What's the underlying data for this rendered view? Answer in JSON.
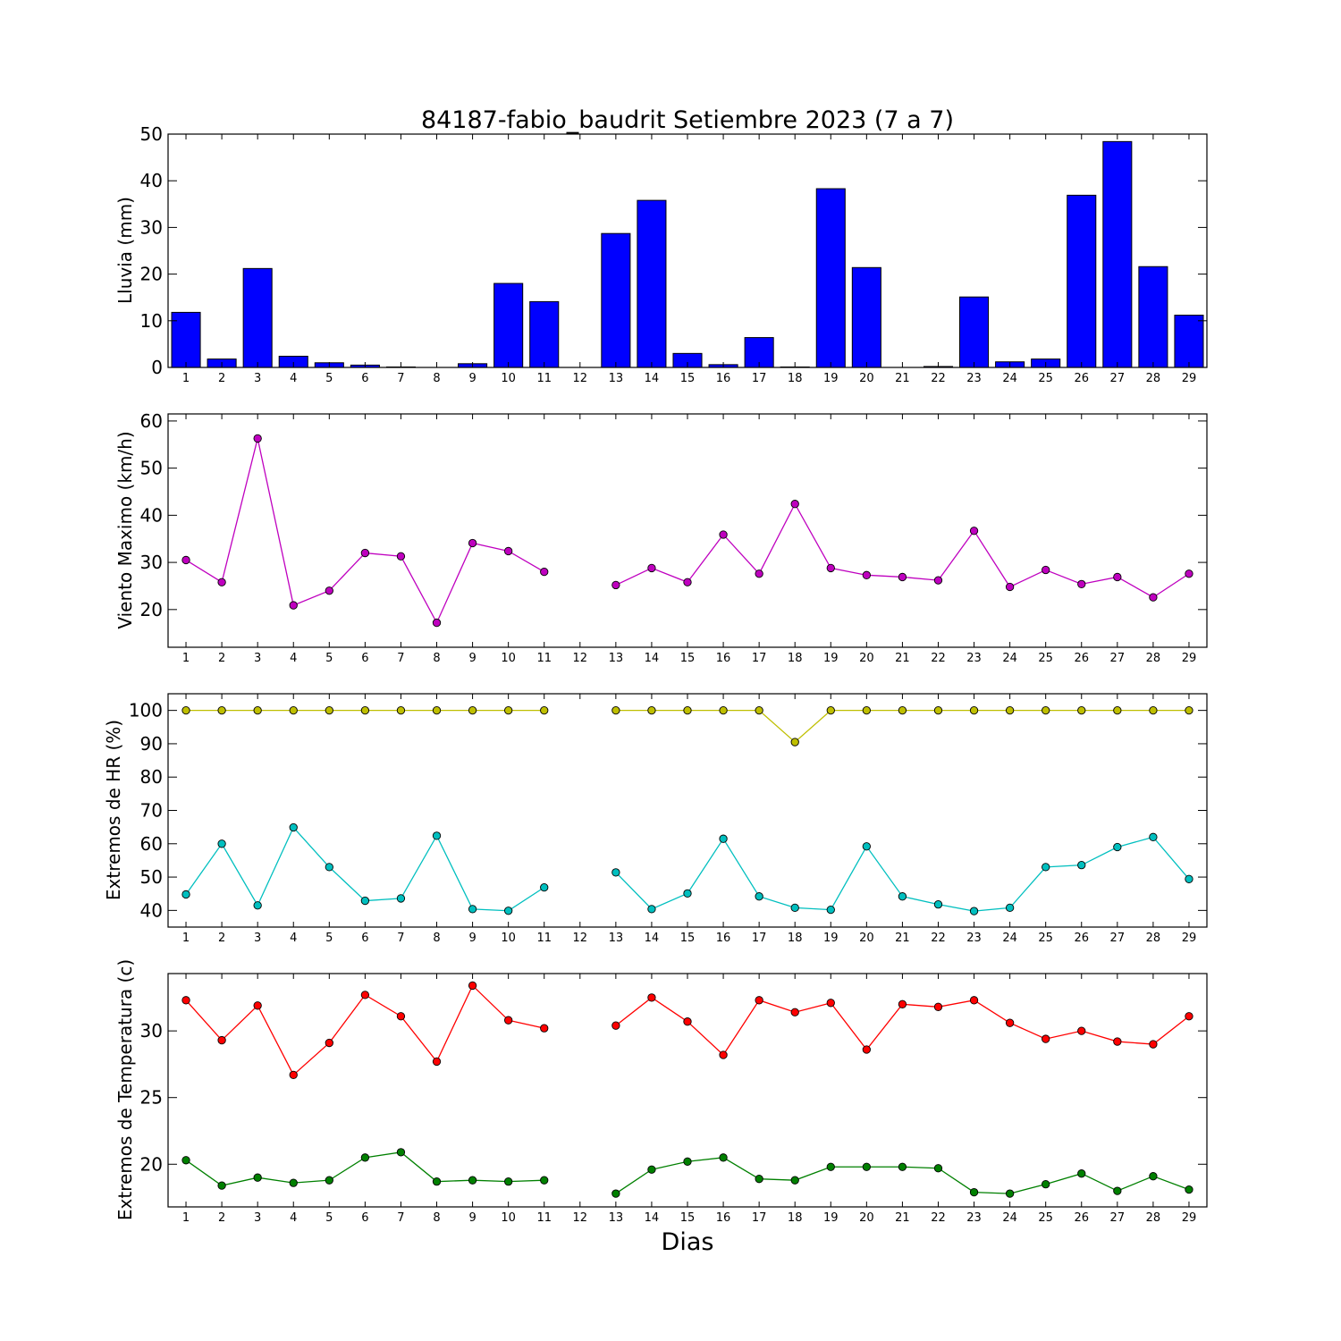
{
  "figure": {
    "title": "84187-fabio_baudrit Setiembre 2023  (7 a 7)",
    "xlabel": "Dias"
  },
  "chart_data": [
    {
      "type": "bar",
      "ylabel": "Lluvia (mm)",
      "ylim": [
        0,
        50
      ],
      "yticks": [
        0,
        10,
        20,
        30,
        40,
        50
      ],
      "xlim": [
        0.5,
        29.5
      ],
      "x": [
        1,
        2,
        3,
        4,
        5,
        6,
        7,
        8,
        9,
        10,
        11,
        12,
        13,
        14,
        15,
        16,
        17,
        18,
        19,
        20,
        21,
        22,
        23,
        24,
        25,
        26,
        27,
        28,
        29
      ],
      "values": [
        11.8,
        1.8,
        21.2,
        2.4,
        1.0,
        0.5,
        0.1,
        0,
        0.8,
        18.0,
        14.1,
        0,
        28.7,
        35.8,
        3.0,
        0.6,
        6.4,
        0.1,
        38.3,
        21.4,
        0,
        0.2,
        15.1,
        1.2,
        1.8,
        36.9,
        48.4,
        21.6,
        11.2
      ],
      "color": "#0000ff",
      "grid": false
    },
    {
      "type": "line",
      "ylabel": "Viento Maximo (km/h)",
      "ylim": [
        12,
        61.5
      ],
      "yticks": [
        20,
        30,
        40,
        50,
        60
      ],
      "xlim": [
        0.5,
        29.5
      ],
      "x": [
        1,
        2,
        3,
        4,
        5,
        6,
        7,
        8,
        9,
        10,
        11,
        12,
        13,
        14,
        15,
        16,
        17,
        18,
        19,
        20,
        21,
        22,
        23,
        24,
        25,
        26,
        27,
        28,
        29
      ],
      "series": [
        {
          "color": "#bf00bf",
          "values": [
            30.5,
            25.8,
            56.3,
            20.9,
            24.0,
            32.0,
            31.3,
            17.2,
            34.1,
            32.4,
            28.0,
            null,
            25.2,
            28.8,
            25.8,
            35.9,
            27.6,
            42.4,
            28.8,
            27.3,
            26.9,
            26.2,
            36.7,
            24.8,
            28.4,
            25.4,
            26.9,
            22.6,
            27.6
          ]
        }
      ],
      "grid": false
    },
    {
      "type": "line",
      "ylabel": "Extremos de HR (%)",
      "ylim": [
        35,
        105
      ],
      "yticks": [
        40,
        50,
        60,
        70,
        80,
        90,
        100
      ],
      "xlim": [
        0.5,
        29.5
      ],
      "x": [
        1,
        2,
        3,
        4,
        5,
        6,
        7,
        8,
        9,
        10,
        11,
        12,
        13,
        14,
        15,
        16,
        17,
        18,
        19,
        20,
        21,
        22,
        23,
        24,
        25,
        26,
        27,
        28,
        29
      ],
      "series": [
        {
          "color": "#bfbf00",
          "values": [
            100,
            100,
            100,
            100,
            100,
            100,
            100,
            100,
            100,
            100,
            100,
            null,
            100,
            100,
            100,
            100,
            100,
            90.5,
            100,
            100,
            100,
            100,
            100,
            100,
            100,
            100,
            100,
            100,
            100
          ]
        },
        {
          "color": "#00bfbf",
          "values": [
            44.8,
            60.0,
            41.5,
            64.9,
            53.0,
            42.9,
            43.6,
            62.4,
            40.4,
            39.9,
            46.9,
            null,
            51.4,
            40.4,
            45.1,
            61.5,
            44.2,
            40.8,
            40.2,
            59.2,
            44.2,
            41.8,
            39.8,
            40.8,
            53.0,
            53.6,
            59.0,
            62.0,
            49.4
          ]
        }
      ],
      "grid": false
    },
    {
      "type": "line",
      "ylabel": "Extremos de Temperatura (c)",
      "ylim": [
        16.8,
        34.3
      ],
      "yticks": [
        20,
        25,
        30
      ],
      "xlim": [
        0.5,
        29.5
      ],
      "x": [
        1,
        2,
        3,
        4,
        5,
        6,
        7,
        8,
        9,
        10,
        11,
        12,
        13,
        14,
        15,
        16,
        17,
        18,
        19,
        20,
        21,
        22,
        23,
        24,
        25,
        26,
        27,
        28,
        29
      ],
      "series": [
        {
          "color": "#ff0000",
          "values": [
            32.3,
            29.3,
            31.9,
            26.7,
            29.1,
            32.7,
            31.1,
            27.7,
            33.4,
            30.8,
            30.2,
            null,
            30.4,
            32.5,
            30.7,
            28.2,
            32.3,
            31.4,
            32.1,
            28.6,
            32.0,
            31.8,
            32.3,
            30.6,
            29.4,
            30.0,
            29.2,
            29.0,
            31.1
          ]
        },
        {
          "color": "#008000",
          "values": [
            20.3,
            18.4,
            19.0,
            18.6,
            18.8,
            20.5,
            20.9,
            18.7,
            18.8,
            18.7,
            18.8,
            null,
            17.8,
            19.6,
            20.2,
            20.5,
            18.9,
            18.8,
            19.8,
            19.8,
            19.8,
            19.7,
            17.9,
            17.8,
            18.5,
            19.3,
            18.0,
            19.1,
            18.1
          ]
        }
      ],
      "grid": false
    }
  ]
}
